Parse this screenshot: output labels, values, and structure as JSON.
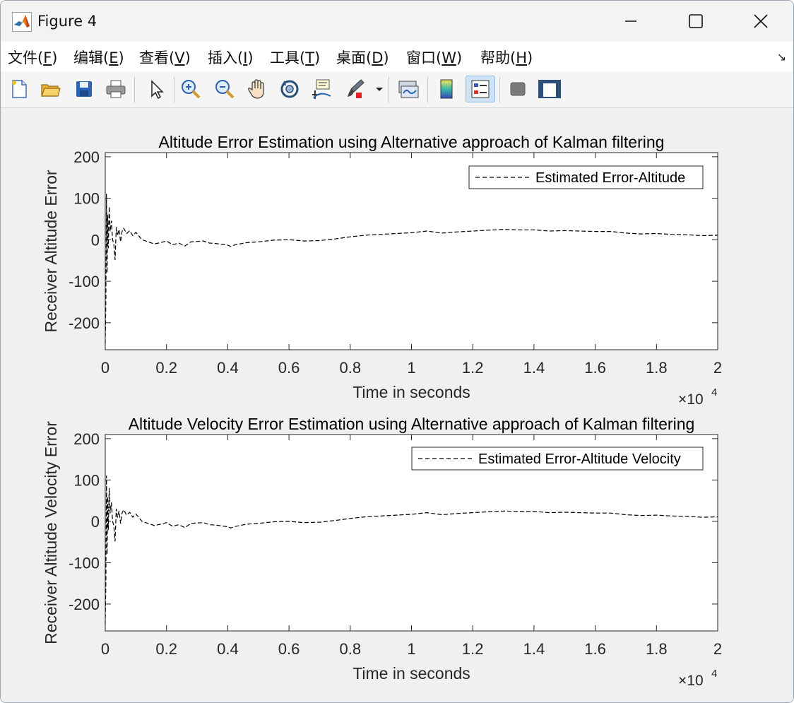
{
  "window": {
    "title": "Figure 4"
  },
  "menu": [
    {
      "text": "文件(",
      "key": "F",
      "end": ")"
    },
    {
      "text": "编辑(",
      "key": "E",
      "end": ")"
    },
    {
      "text": "查看(",
      "key": "V",
      "end": ")"
    },
    {
      "text": "插入(",
      "key": "I",
      "end": ")"
    },
    {
      "text": "工具(",
      "key": "T",
      "end": ")"
    },
    {
      "text": "桌面(",
      "key": "D",
      "end": ")"
    },
    {
      "text": "窗口(",
      "key": "W",
      "end": ")"
    },
    {
      "text": "帮助(",
      "key": "H",
      "end": ")"
    }
  ],
  "toolbar": {
    "icons": [
      "new-figure-icon",
      "open-file-icon",
      "save-icon",
      "print-icon",
      "pointer-icon",
      "zoom-in-icon",
      "zoom-out-icon",
      "pan-hand-icon",
      "rotate-3d-icon",
      "data-cursor-icon",
      "brush-icon",
      "brush-dropdown-icon",
      "link-plot-icon",
      "colorbar-icon",
      "legend-icon",
      "hide-plot-tools-icon",
      "show-plot-tools-icon"
    ],
    "active": "legend-icon"
  },
  "chart_data": [
    {
      "type": "line",
      "title": "Altitude Error Estimation using Alternative approach of Kalman filtering",
      "xlabel": "Time in seconds",
      "ylabel": "Receiver Altitude Error",
      "x_exponent": "×10",
      "x_exponent_power": "4",
      "xlim": [
        0,
        20000
      ],
      "ylim": [
        -265,
        210
      ],
      "xticks": [
        0,
        2000,
        4000,
        6000,
        8000,
        10000,
        12000,
        14000,
        16000,
        18000,
        20000
      ],
      "xtick_labels": [
        "0",
        "0.2",
        "0.4",
        "0.6",
        "0.8",
        "1",
        "1.2",
        "1.4",
        "1.6",
        "1.8",
        "2"
      ],
      "yticks": [
        200,
        100,
        0,
        -100,
        -200
      ],
      "ytick_labels": [
        "200",
        "100",
        "0",
        "-100",
        "-200"
      ],
      "legend": "top-right",
      "series": [
        {
          "name": "Estimated Error-Altitude",
          "color": "#000000",
          "style": "dashed",
          "x": [
            0,
            20,
            40,
            60,
            80,
            100,
            130,
            160,
            200,
            240,
            280,
            320,
            360,
            400,
            450,
            500,
            550,
            600,
            700,
            800,
            900,
            1000,
            1200,
            1400,
            1600,
            1800,
            2000,
            2200,
            2400,
            2600,
            2800,
            3000,
            3200,
            3400,
            3600,
            3800,
            4000,
            4100,
            4200,
            4400,
            4600,
            4800,
            5000,
            5500,
            6000,
            6500,
            7000,
            7500,
            8000,
            8500,
            9000,
            9500,
            10000,
            10500,
            11000,
            11500,
            12000,
            12500,
            13000,
            13500,
            14000,
            14500,
            15000,
            15500,
            16000,
            16500,
            17000,
            17500,
            18000,
            18500,
            19000,
            19500,
            20000
          ],
          "y": [
            -250,
            -140,
            110,
            -80,
            60,
            -20,
            80,
            20,
            45,
            0,
            -10,
            -48,
            30,
            10,
            25,
            -5,
            20,
            28,
            15,
            22,
            10,
            18,
            0,
            -5,
            -10,
            -7,
            -3,
            -12,
            -8,
            -15,
            -5,
            -4,
            -3,
            -8,
            -9,
            -11,
            -13,
            -16,
            -13,
            -10,
            -7,
            -6,
            -5,
            -1,
            0,
            -3,
            -2,
            2,
            7,
            11,
            13,
            15,
            17,
            21,
            16,
            19,
            21,
            23,
            25,
            24,
            24,
            21,
            22,
            21,
            20,
            20,
            16,
            14,
            15,
            13,
            12,
            10,
            11
          ]
        }
      ]
    },
    {
      "type": "line",
      "title": "Altitude Velocity Error Estimation using Alternative approach of Kalman filtering",
      "xlabel": "Time in seconds",
      "ylabel": "Receiver Altitude Velocity Error",
      "x_exponent": "×10",
      "x_exponent_power": "4",
      "xlim": [
        0,
        20000
      ],
      "ylim": [
        -265,
        210
      ],
      "xticks": [
        0,
        2000,
        4000,
        6000,
        8000,
        10000,
        12000,
        14000,
        16000,
        18000,
        20000
      ],
      "xtick_labels": [
        "0",
        "0.2",
        "0.4",
        "0.6",
        "0.8",
        "1",
        "1.2",
        "1.4",
        "1.6",
        "1.8",
        "2"
      ],
      "yticks": [
        200,
        100,
        0,
        -100,
        -200
      ],
      "ytick_labels": [
        "200",
        "100",
        "0",
        "-100",
        "-200"
      ],
      "legend": "top-right",
      "series": [
        {
          "name": "Estimated Error-Altitude Velocity",
          "color": "#000000",
          "style": "dashed",
          "x": [
            0,
            20,
            40,
            60,
            80,
            100,
            130,
            160,
            200,
            240,
            280,
            320,
            360,
            400,
            450,
            500,
            550,
            600,
            700,
            800,
            900,
            1000,
            1200,
            1400,
            1600,
            1800,
            2000,
            2200,
            2400,
            2600,
            2800,
            3000,
            3200,
            3400,
            3600,
            3800,
            4000,
            4100,
            4200,
            4400,
            4600,
            4800,
            5000,
            5500,
            6000,
            6500,
            7000,
            7500,
            8000,
            8500,
            9000,
            9500,
            10000,
            10500,
            11000,
            11500,
            12000,
            12500,
            13000,
            13500,
            14000,
            14500,
            15000,
            15500,
            16000,
            16500,
            17000,
            17500,
            18000,
            18500,
            19000,
            19500,
            20000
          ],
          "y": [
            -250,
            -140,
            110,
            -80,
            60,
            -20,
            80,
            20,
            45,
            0,
            -10,
            -48,
            30,
            10,
            25,
            -5,
            20,
            28,
            15,
            22,
            10,
            18,
            0,
            -5,
            -10,
            -7,
            -3,
            -12,
            -8,
            -15,
            -5,
            -4,
            -3,
            -8,
            -9,
            -11,
            -13,
            -16,
            -13,
            -10,
            -7,
            -6,
            -5,
            -1,
            0,
            -3,
            -2,
            2,
            7,
            11,
            13,
            15,
            17,
            21,
            16,
            19,
            21,
            23,
            25,
            24,
            24,
            21,
            22,
            21,
            20,
            20,
            16,
            14,
            15,
            13,
            12,
            10,
            11
          ]
        }
      ]
    }
  ]
}
